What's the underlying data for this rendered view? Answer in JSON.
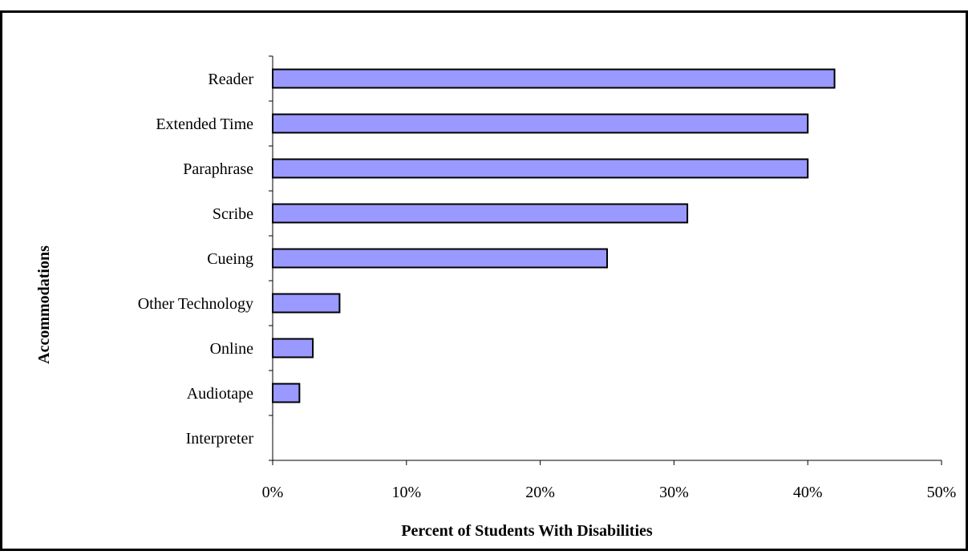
{
  "chart_data": {
    "type": "bar",
    "orientation": "horizontal",
    "categories": [
      "Reader",
      "Extended Time",
      "Paraphrase",
      "Scribe",
      "Cueing",
      "Other Technology",
      "Online",
      "Audiotape",
      "Interpreter"
    ],
    "values": [
      42,
      40,
      40,
      31,
      25,
      5,
      3,
      2,
      0
    ],
    "xlabel": "Percent of Students With Disabilities",
    "ylabel": "Accommodations",
    "xlim": [
      0,
      50
    ],
    "xticks": [
      "0%",
      "10%",
      "20%",
      "30%",
      "40%",
      "50%"
    ],
    "grid": false,
    "legend": "none",
    "bar_color": "#9999ff",
    "bar_edge_color": "#000000"
  }
}
